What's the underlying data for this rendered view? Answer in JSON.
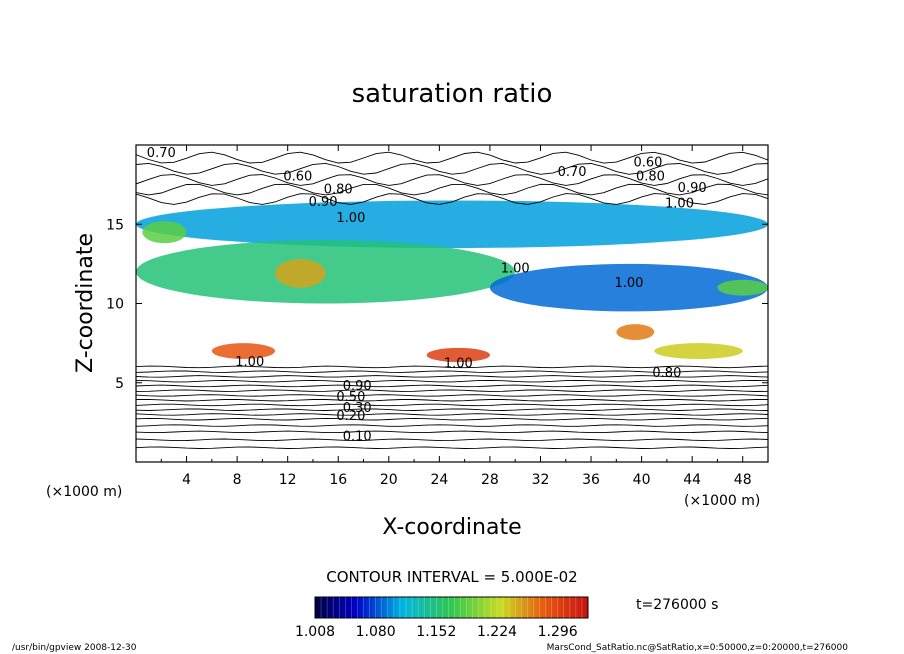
{
  "chart_data": {
    "type": "heatmap",
    "title": "saturation ratio",
    "xlabel": "X-coordinate",
    "ylabel": "Z-coordinate",
    "x_unit": "(×1000 m)",
    "z_unit": "(×1000 m)",
    "xlim": [
      0,
      50
    ],
    "ylim": [
      0,
      20
    ],
    "x_ticks": [
      4,
      8,
      12,
      16,
      20,
      24,
      28,
      32,
      36,
      40,
      44,
      48
    ],
    "y_ticks": [
      5,
      10,
      15
    ],
    "contour_interval_text": "CONTOUR INTERVAL = 5.000E-02",
    "time_text": "t=276000  s",
    "colorbar": {
      "range": [
        1.008,
        1.332
      ],
      "tick_labels": [
        "1.008",
        "1.080",
        "1.152",
        "1.224",
        "1.296"
      ]
    },
    "contour_labels": [
      {
        "text": "0.70",
        "x": 2.0,
        "z": 19.5
      },
      {
        "text": "0.60",
        "x": 12.8,
        "z": 18.0
      },
      {
        "text": "0.80",
        "x": 16.0,
        "z": 17.2
      },
      {
        "text": "0.90",
        "x": 14.8,
        "z": 16.4
      },
      {
        "text": "1.00",
        "x": 17.0,
        "z": 15.4
      },
      {
        "text": "0.70",
        "x": 34.5,
        "z": 18.3
      },
      {
        "text": "0.60",
        "x": 40.5,
        "z": 18.9
      },
      {
        "text": "0.80",
        "x": 40.7,
        "z": 18.0
      },
      {
        "text": "0.90",
        "x": 44.0,
        "z": 17.3
      },
      {
        "text": "1.00",
        "x": 43.0,
        "z": 16.3
      },
      {
        "text": "1.00",
        "x": 30.0,
        "z": 12.2
      },
      {
        "text": "1.00",
        "x": 39.0,
        "z": 11.3
      },
      {
        "text": "1.00",
        "x": 9.0,
        "z": 6.3
      },
      {
        "text": "1.00",
        "x": 25.5,
        "z": 6.2
      },
      {
        "text": "0.80",
        "x": 42.0,
        "z": 5.6
      },
      {
        "text": "0.90",
        "x": 17.5,
        "z": 4.8
      },
      {
        "text": "0.50",
        "x": 17.0,
        "z": 4.1
      },
      {
        "text": "0.30",
        "x": 17.5,
        "z": 3.4
      },
      {
        "text": "0.20",
        "x": 17.0,
        "z": 2.9
      },
      {
        "text": "0.10",
        "x": 17.5,
        "z": 1.6
      }
    ],
    "regions": [
      {
        "x": [
          0,
          50
        ],
        "z": [
          13.5,
          16.5
        ],
        "level": 0.3
      },
      {
        "x": [
          0,
          30
        ],
        "z": [
          10.0,
          14.0
        ],
        "level": 0.45
      },
      {
        "x": [
          28,
          50
        ],
        "z": [
          9.5,
          12.5
        ],
        "level": 0.25
      },
      {
        "x": [
          0.5,
          4
        ],
        "z": [
          13.8,
          15.2
        ],
        "level": 0.55
      },
      {
        "x": [
          11,
          15
        ],
        "z": [
          11.0,
          12.8
        ],
        "level": 0.75
      },
      {
        "x": [
          6,
          11
        ],
        "z": [
          6.5,
          7.5
        ],
        "level": 0.85
      },
      {
        "x": [
          23,
          28
        ],
        "z": [
          6.3,
          7.2
        ],
        "level": 0.9
      },
      {
        "x": [
          41,
          48
        ],
        "z": [
          6.5,
          7.5
        ],
        "level": 0.7
      },
      {
        "x": [
          38,
          41
        ],
        "z": [
          7.7,
          8.7
        ],
        "level": 0.8
      },
      {
        "x": [
          46,
          50
        ],
        "z": [
          10.5,
          11.5
        ],
        "level": 0.55
      }
    ]
  },
  "footer": {
    "left": "/usr/bin/gpview   2008-12-30",
    "right": "MarsCond_SatRatio.nc@SatRatio,x=0:50000,z=0:20000,t=276000"
  }
}
